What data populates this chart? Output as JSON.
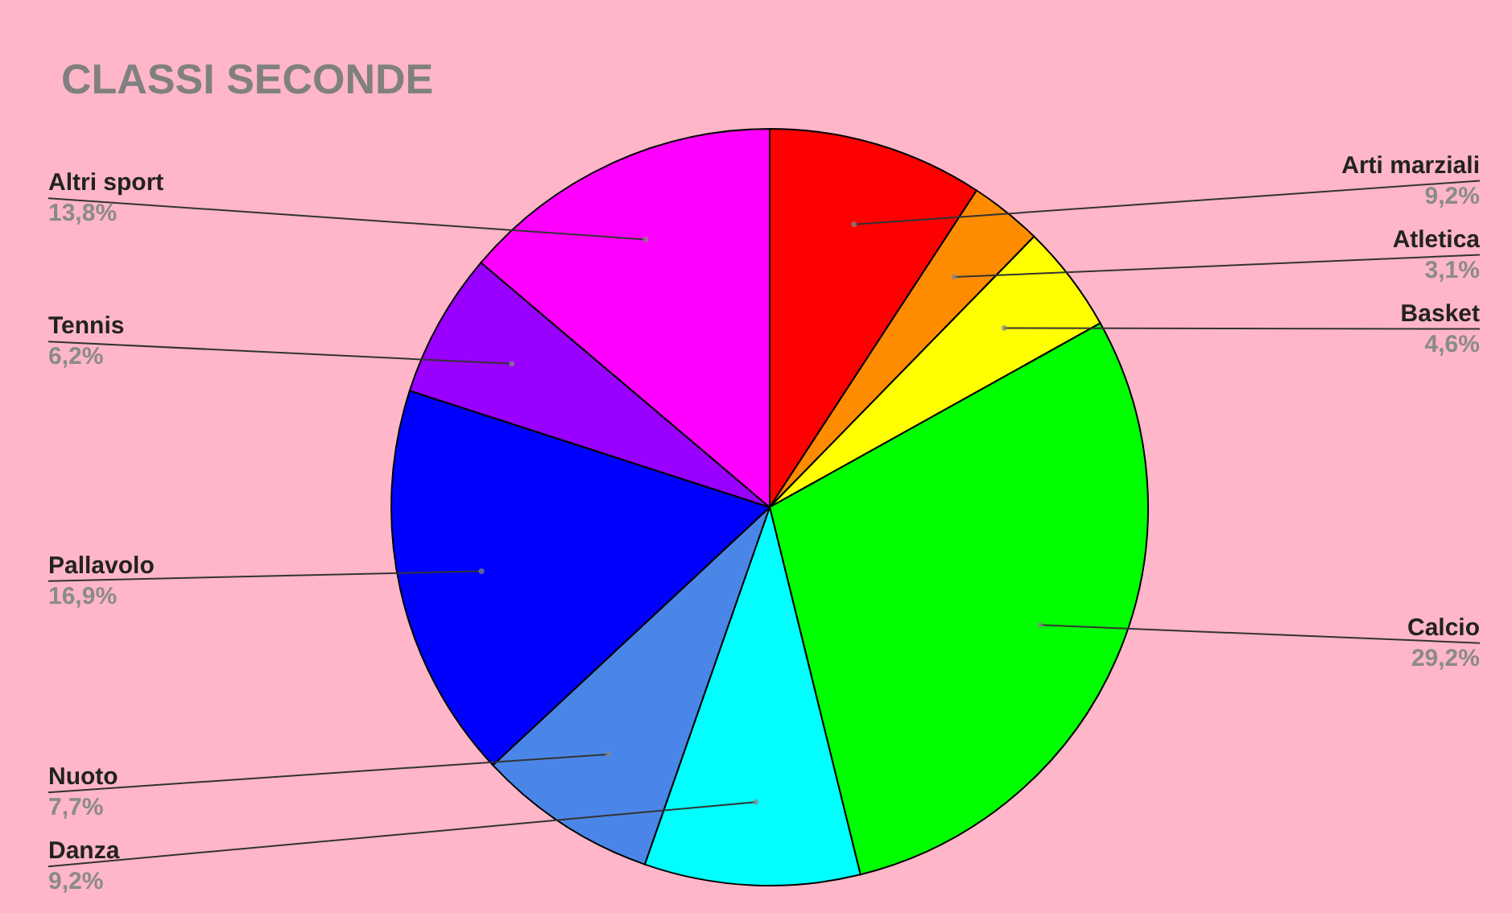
{
  "chart_data": {
    "type": "pie",
    "title": "CLASSI SECONDE",
    "categories": [
      "Arti marziali",
      "Atletica",
      "Basket",
      "Calcio",
      "Danza",
      "Nuoto",
      "Pallavolo",
      "Tennis",
      "Altri sport"
    ],
    "values": [
      9.2,
      3.1,
      4.6,
      29.2,
      9.2,
      7.7,
      16.9,
      6.2,
      13.8
    ],
    "colors": [
      "#ff0000",
      "#ff8c00",
      "#ffff00",
      "#00ff00",
      "#00ffff",
      "#4a86e8",
      "#0000ff",
      "#9900ff",
      "#ff00ff"
    ],
    "value_labels": [
      "9,2%",
      "3,1%",
      "4,6%",
      "29,2%",
      "9,2%",
      "7,7%",
      "16,9%",
      "6,2%",
      "13,8%"
    ]
  }
}
